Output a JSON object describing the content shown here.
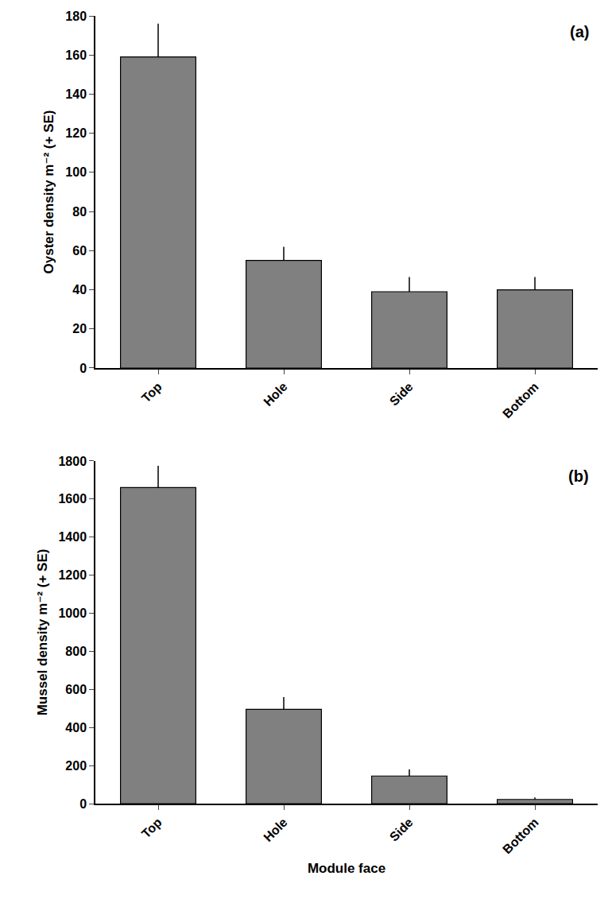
{
  "chart_data": [
    {
      "type": "bar",
      "panel_label": "(a)",
      "y_label": "Oyster density m⁻² (+ SE)",
      "categories": [
        "Top",
        "Hole",
        "Side",
        "Bottom"
      ],
      "values": [
        159,
        55,
        39,
        40
      ],
      "errors": [
        17,
        7,
        7.5,
        6.5
      ],
      "color": "#808080",
      "ylim": [
        0,
        180
      ],
      "yticks": [
        0,
        20,
        40,
        60,
        80,
        100,
        120,
        140,
        160,
        180
      ]
    },
    {
      "type": "bar",
      "panel_label": "(b)",
      "x_label": "Module face",
      "y_label": "Mussel density m⁻² (+ SE)",
      "categories": [
        "Top",
        "Hole",
        "Side",
        "Bottom"
      ],
      "values": [
        1660,
        495,
        145,
        22
      ],
      "errors": [
        115,
        65,
        35,
        10
      ],
      "color": "#808080",
      "ylim": [
        0,
        1800
      ],
      "yticks": [
        0,
        200,
        400,
        600,
        800,
        1000,
        1200,
        1400,
        1600,
        1800
      ]
    }
  ]
}
